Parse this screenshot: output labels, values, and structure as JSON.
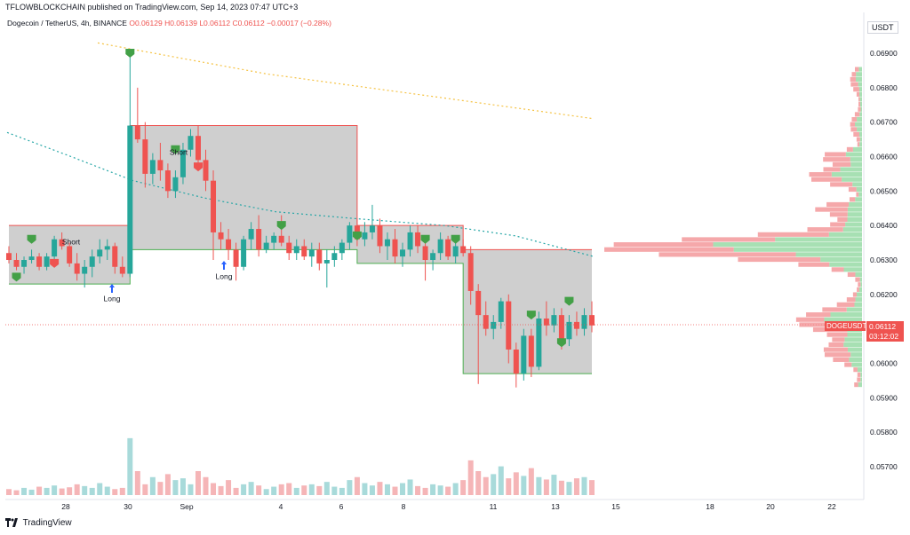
{
  "header": {
    "publish_line": "TFLOWBLOCKCHAIN published on TradingView.com, Sep 14, 2023 07:47 UTC+3",
    "symbol_line": "Dogecoin / TetherUS, 4h, BINANCE",
    "open": "O0.06129",
    "high": "H0.06139",
    "low": "L0.06112",
    "close": "C0.06112",
    "change": "−0.00017 (−0.28%)"
  },
  "currency": "USDT",
  "brand": "TradingView",
  "quote": {
    "symbol": "DOGEUSDT",
    "price": "0.06112",
    "countdown": "03:12:02"
  },
  "colors": {
    "up": "#26a69a",
    "down": "#ef5350",
    "box_fill": "#c7c7c7",
    "ma_slow": "#f5c242",
    "ma_fast": "#26a6a6",
    "vp_up": "#89d69a",
    "vp_down": "#f28b8e"
  },
  "chart_data": {
    "type": "candlestick",
    "timeframe": "4h",
    "ylim": [
      0.0565,
      0.0695
    ],
    "y_ticks": [
      "0.06900",
      "0.06800",
      "0.06700",
      "0.06600",
      "0.06500",
      "0.06400",
      "0.06300",
      "0.06200",
      "0.06000",
      "0.05900",
      "0.05800",
      "0.05700"
    ],
    "x_ticks": [
      "28",
      "30",
      "Sep",
      "4",
      "6",
      "8",
      "11",
      "13",
      "15",
      "18",
      "20",
      "22"
    ],
    "annotations": [
      "Short",
      "Short",
      "Long",
      "Long"
    ],
    "candles": [
      [
        0.0632,
        0.0634,
        0.0629,
        0.063
      ],
      [
        0.063,
        0.0632,
        0.0627,
        0.0628
      ],
      [
        0.0628,
        0.0631,
        0.0626,
        0.063
      ],
      [
        0.063,
        0.0633,
        0.0629,
        0.0631
      ],
      [
        0.0631,
        0.0632,
        0.0627,
        0.0628
      ],
      [
        0.0628,
        0.0632,
        0.0627,
        0.0631
      ],
      [
        0.0631,
        0.0637,
        0.063,
        0.0636
      ],
      [
        0.0636,
        0.0638,
        0.0633,
        0.0634
      ],
      [
        0.0634,
        0.0635,
        0.0628,
        0.0629
      ],
      [
        0.0629,
        0.0632,
        0.0624,
        0.0626
      ],
      [
        0.0626,
        0.063,
        0.0622,
        0.0628
      ],
      [
        0.0628,
        0.0633,
        0.0625,
        0.0631
      ],
      [
        0.0631,
        0.0636,
        0.0629,
        0.0633
      ],
      [
        0.0633,
        0.0636,
        0.063,
        0.0634
      ],
      [
        0.0634,
        0.0635,
        0.0626,
        0.0628
      ],
      [
        0.0628,
        0.0631,
        0.0625,
        0.0626
      ],
      [
        0.0626,
        0.069,
        0.0625,
        0.0669
      ],
      [
        0.0669,
        0.068,
        0.0664,
        0.0665
      ],
      [
        0.0665,
        0.067,
        0.0651,
        0.0655
      ],
      [
        0.0655,
        0.0661,
        0.0652,
        0.0659
      ],
      [
        0.0659,
        0.0664,
        0.0653,
        0.0656
      ],
      [
        0.0656,
        0.0658,
        0.0648,
        0.065
      ],
      [
        0.065,
        0.0656,
        0.0648,
        0.0654
      ],
      [
        0.0654,
        0.0664,
        0.0652,
        0.0662
      ],
      [
        0.0662,
        0.0668,
        0.066,
        0.0666
      ],
      [
        0.0666,
        0.0669,
        0.0657,
        0.0659
      ],
      [
        0.0659,
        0.0662,
        0.065,
        0.0653
      ],
      [
        0.0653,
        0.0656,
        0.063,
        0.0638
      ],
      [
        0.0638,
        0.0641,
        0.0633,
        0.0636
      ],
      [
        0.0636,
        0.0639,
        0.063,
        0.0633
      ],
      [
        0.0633,
        0.0635,
        0.0624,
        0.0628
      ],
      [
        0.0628,
        0.0637,
        0.0627,
        0.0636
      ],
      [
        0.0636,
        0.0641,
        0.0633,
        0.0639
      ],
      [
        0.0639,
        0.0643,
        0.0631,
        0.0633
      ],
      [
        0.0633,
        0.0637,
        0.0632,
        0.0635
      ],
      [
        0.0635,
        0.0638,
        0.0633,
        0.0637
      ],
      [
        0.0637,
        0.0643,
        0.0634,
        0.0635
      ],
      [
        0.0635,
        0.0637,
        0.063,
        0.0632
      ],
      [
        0.0632,
        0.0636,
        0.063,
        0.0634
      ],
      [
        0.0634,
        0.0636,
        0.063,
        0.0631
      ],
      [
        0.0631,
        0.0635,
        0.0628,
        0.0633
      ],
      [
        0.0633,
        0.0635,
        0.0627,
        0.0629
      ],
      [
        0.0629,
        0.0633,
        0.0622,
        0.063
      ],
      [
        0.063,
        0.0634,
        0.0628,
        0.0632
      ],
      [
        0.0632,
        0.0636,
        0.063,
        0.0635
      ],
      [
        0.0635,
        0.0641,
        0.0633,
        0.064
      ],
      [
        0.064,
        0.0642,
        0.0634,
        0.0636
      ],
      [
        0.0636,
        0.0641,
        0.0634,
        0.0638
      ],
      [
        0.0638,
        0.0646,
        0.0636,
        0.064
      ],
      [
        0.064,
        0.0642,
        0.0632,
        0.0634
      ],
      [
        0.0634,
        0.0638,
        0.063,
        0.0636
      ],
      [
        0.0636,
        0.0639,
        0.0629,
        0.0631
      ],
      [
        0.0631,
        0.0635,
        0.0628,
        0.0633
      ],
      [
        0.0633,
        0.064,
        0.0631,
        0.0638
      ],
      [
        0.0638,
        0.064,
        0.0632,
        0.0634
      ],
      [
        0.0634,
        0.0636,
        0.0624,
        0.063
      ],
      [
        0.063,
        0.0633,
        0.0627,
        0.0632
      ],
      [
        0.0632,
        0.0638,
        0.063,
        0.0636
      ],
      [
        0.0636,
        0.0637,
        0.063,
        0.0631
      ],
      [
        0.0631,
        0.0635,
        0.0629,
        0.0634
      ],
      [
        0.0634,
        0.0636,
        0.0631,
        0.0632
      ],
      [
        0.0632,
        0.0634,
        0.0617,
        0.0621
      ],
      [
        0.0621,
        0.0623,
        0.0594,
        0.0614
      ],
      [
        0.0614,
        0.0618,
        0.0608,
        0.061
      ],
      [
        0.061,
        0.0614,
        0.0607,
        0.0612
      ],
      [
        0.0612,
        0.0619,
        0.061,
        0.0618
      ],
      [
        0.0618,
        0.062,
        0.06,
        0.0604
      ],
      [
        0.0604,
        0.0606,
        0.0593,
        0.0597
      ],
      [
        0.0597,
        0.061,
        0.0595,
        0.0608
      ],
      [
        0.0608,
        0.061,
        0.0596,
        0.0599
      ],
      [
        0.0599,
        0.0615,
        0.0598,
        0.0613
      ],
      [
        0.0613,
        0.0618,
        0.0608,
        0.0611
      ],
      [
        0.0611,
        0.0616,
        0.0609,
        0.0614
      ],
      [
        0.0614,
        0.0616,
        0.0604,
        0.0607
      ],
      [
        0.0607,
        0.0614,
        0.0605,
        0.0612
      ],
      [
        0.0612,
        0.0615,
        0.0608,
        0.061
      ],
      [
        0.061,
        0.0616,
        0.0608,
        0.0614
      ],
      [
        0.0614,
        0.0618,
        0.0609,
        0.0611
      ]
    ]
  }
}
